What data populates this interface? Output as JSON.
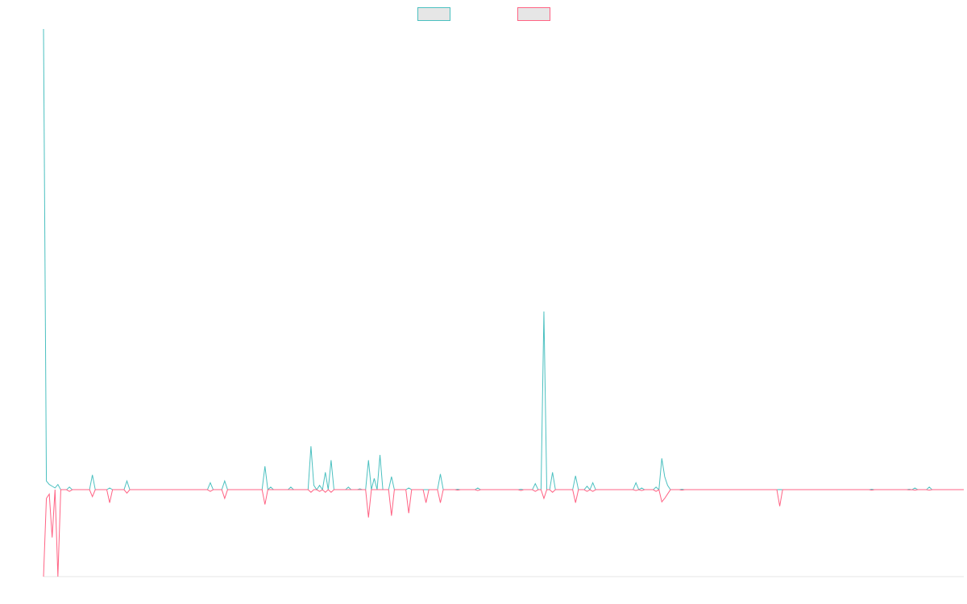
{
  "chart_data": {
    "type": "line",
    "title": "",
    "xlabel": "",
    "ylabel": "",
    "grid": false,
    "legend_position": "top-center",
    "ylim": [
      -100,
      530
    ],
    "x_count": 321,
    "series": [
      {
        "name": "",
        "color": "#4bc0c0",
        "fill": "#e6e6e6",
        "spikes": [
          [
            0,
            530
          ],
          [
            1,
            10
          ],
          [
            2,
            6
          ],
          [
            3,
            4
          ],
          [
            4,
            2
          ],
          [
            5,
            6
          ],
          [
            9,
            3
          ],
          [
            17,
            17
          ],
          [
            23,
            2
          ],
          [
            29,
            10
          ],
          [
            58,
            8
          ],
          [
            63,
            10
          ],
          [
            77,
            27
          ],
          [
            79,
            3
          ],
          [
            86,
            3
          ],
          [
            93,
            50
          ],
          [
            94,
            5
          ],
          [
            96,
            5
          ],
          [
            98,
            20
          ],
          [
            100,
            34
          ],
          [
            106,
            3
          ],
          [
            110,
            1
          ],
          [
            113,
            34
          ],
          [
            115,
            13
          ],
          [
            117,
            40
          ],
          [
            121,
            15
          ],
          [
            127,
            2
          ],
          [
            138,
            18
          ],
          [
            144,
            0.5
          ],
          [
            151,
            2
          ],
          [
            166,
            0.5
          ],
          [
            171,
            7
          ],
          [
            174,
            205
          ],
          [
            177,
            20
          ],
          [
            185,
            16
          ],
          [
            189,
            4
          ],
          [
            191,
            8
          ],
          [
            206,
            8
          ],
          [
            208,
            2
          ],
          [
            213,
            3
          ],
          [
            215,
            36
          ],
          [
            216,
            15
          ],
          [
            217,
            5
          ],
          [
            222,
            0.5
          ],
          [
            256,
            0.2
          ],
          [
            288,
            0.5
          ],
          [
            301,
            0.5
          ],
          [
            303,
            2
          ],
          [
            308,
            3
          ]
        ]
      },
      {
        "name": "",
        "color": "#ff6384",
        "fill": "#e6e6e6",
        "spikes": [
          [
            0,
            -100
          ],
          [
            1,
            -10
          ],
          [
            2,
            -5
          ],
          [
            3,
            -55
          ],
          [
            5,
            -100
          ],
          [
            9,
            -2
          ],
          [
            17,
            -8
          ],
          [
            23,
            -15
          ],
          [
            29,
            -4
          ],
          [
            58,
            -2
          ],
          [
            63,
            -10
          ],
          [
            77,
            -17
          ],
          [
            93,
            -3
          ],
          [
            96,
            -2
          ],
          [
            98,
            -3
          ],
          [
            100,
            -3
          ],
          [
            113,
            -32
          ],
          [
            121,
            -30
          ],
          [
            127,
            -27
          ],
          [
            133,
            -15
          ],
          [
            138,
            -15
          ],
          [
            144,
            -0.5
          ],
          [
            151,
            -1
          ],
          [
            166,
            -1
          ],
          [
            171,
            -2
          ],
          [
            174,
            -10
          ],
          [
            177,
            -3
          ],
          [
            185,
            -15
          ],
          [
            189,
            -2
          ],
          [
            191,
            -2
          ],
          [
            206,
            -1
          ],
          [
            208,
            -1
          ],
          [
            213,
            -2
          ],
          [
            215,
            -14
          ],
          [
            216,
            -10
          ],
          [
            217,
            -5
          ],
          [
            222,
            -0.5
          ],
          [
            256,
            -19
          ],
          [
            288,
            -0.5
          ],
          [
            301,
            -0.2
          ],
          [
            303,
            -0.5
          ],
          [
            308,
            -0.5
          ]
        ]
      }
    ]
  }
}
